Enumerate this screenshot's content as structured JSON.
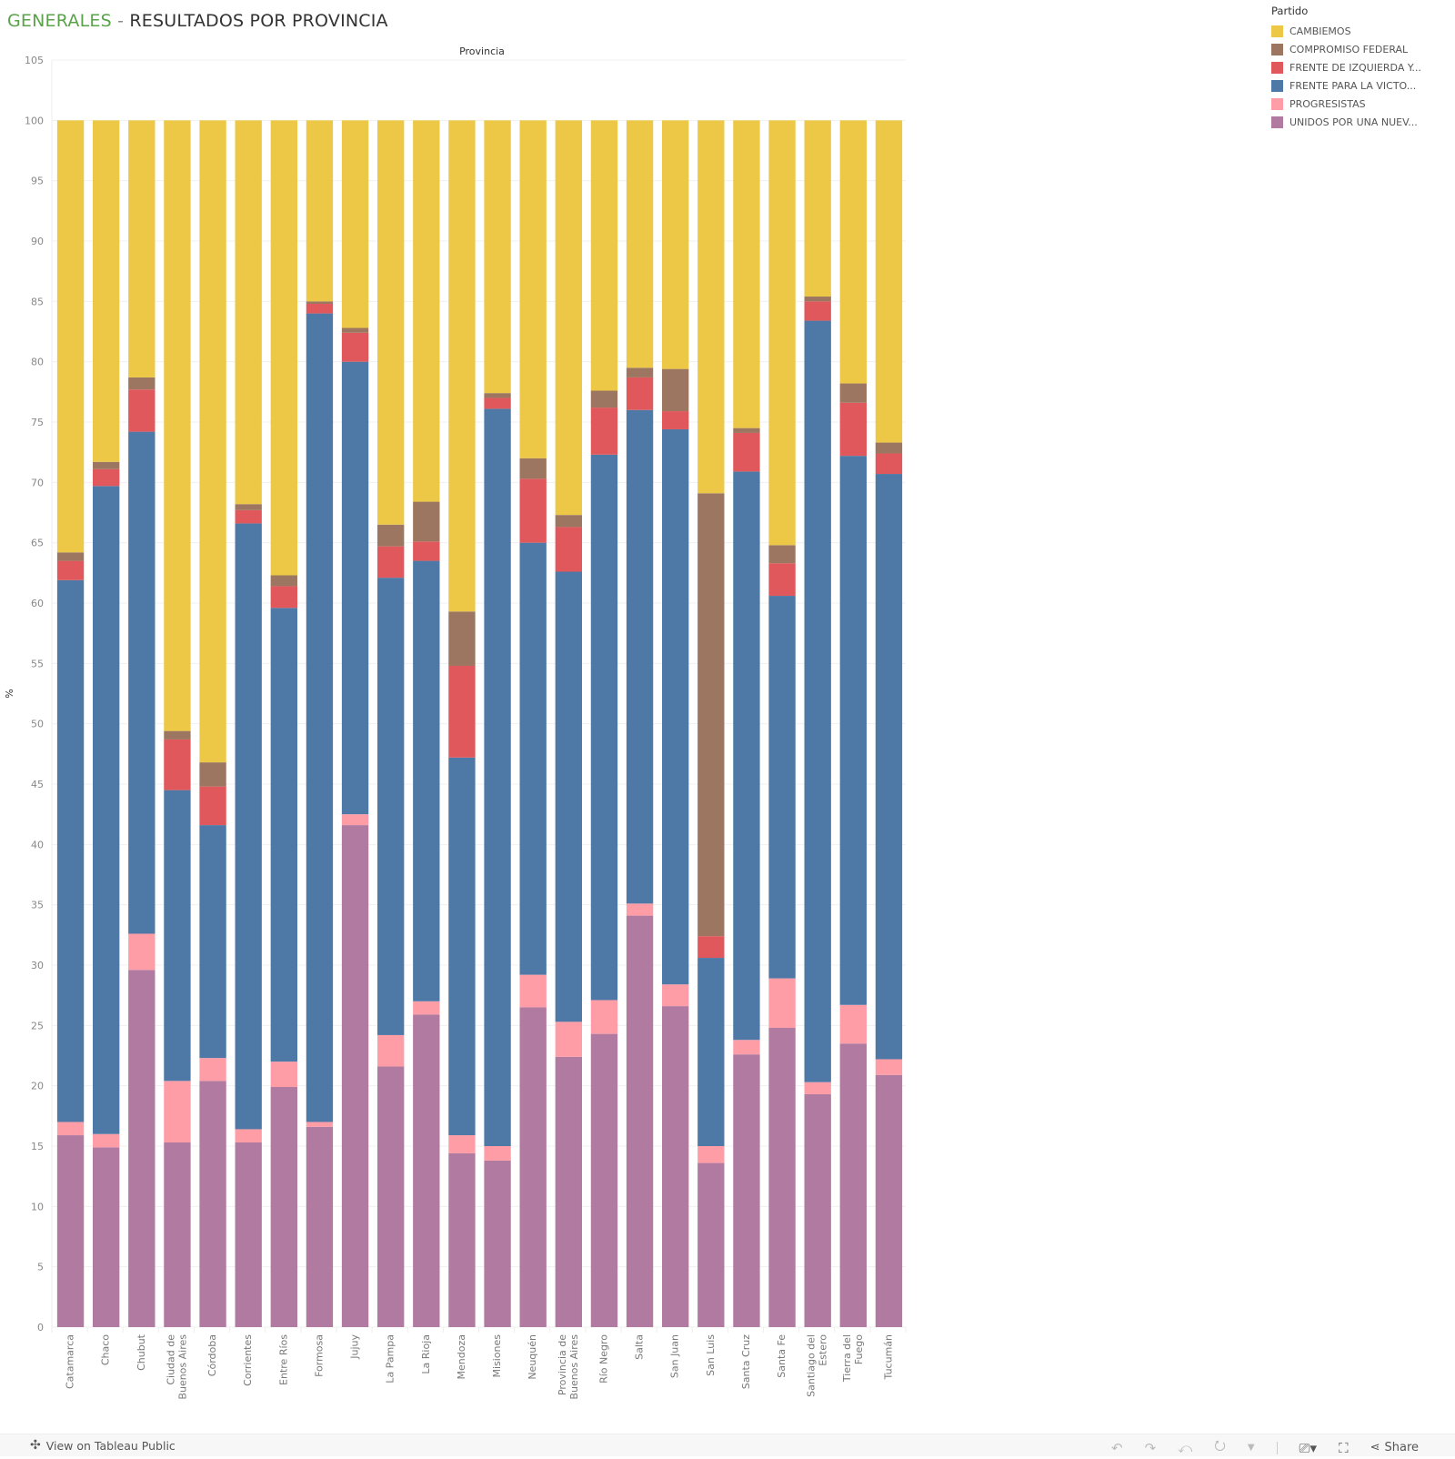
{
  "title": {
    "part1": "GENERALES",
    "sep": " - ",
    "part2": "RESULTADOS POR PROVINCIA"
  },
  "header_label": "Provincia",
  "legend": {
    "title": "Partido",
    "items": [
      {
        "label": "CAMBIEMOS",
        "color": "#ecc846"
      },
      {
        "label": "COMPROMISO FEDERAL",
        "color": "#9c7660"
      },
      {
        "label": "FRENTE DE IZQUIERDA Y...",
        "color": "#e0585b"
      },
      {
        "label": "FRENTE PARA LA VICTO...",
        "color": "#4e79a7"
      },
      {
        "label": "PROGRESISTAS",
        "color": "#ff9da7"
      },
      {
        "label": "UNIDOS POR UNA NUEV...",
        "color": "#b07aa1"
      }
    ]
  },
  "footer": {
    "view_label": "View on Tableau Public",
    "share_label": "Share"
  },
  "chart_data": {
    "type": "bar",
    "stacked": true,
    "title": "GENERALES - RESULTADOS POR PROVINCIA",
    "xlabel": "Provincia",
    "ylabel": "%",
    "ylim": [
      0,
      105
    ],
    "yticks": [
      0,
      5,
      10,
      15,
      20,
      25,
      30,
      35,
      40,
      45,
      50,
      55,
      60,
      65,
      70,
      75,
      80,
      85,
      90,
      95,
      100,
      105
    ],
    "grid": true,
    "legend_position": "top-right",
    "categories": [
      "Catamarca",
      "Chaco",
      "Chubut",
      "Ciudad de Buenos Aires",
      "Córdoba",
      "Corrientes",
      "Entre Ríos",
      "Formosa",
      "Jujuy",
      "La Pampa",
      "La Rioja",
      "Mendoza",
      "Misiones",
      "Neuquén",
      "Provincia de Buenos Aires",
      "Río Negro",
      "Salta",
      "San Juan",
      "San Luis",
      "Santa Cruz",
      "Santa Fe",
      "Santiago del Estero",
      "Tierra del Fuego",
      "Tucumán"
    ],
    "category_lines": [
      [
        "Catamarca"
      ],
      [
        "Chaco"
      ],
      [
        "Chubut"
      ],
      [
        "Ciudad de",
        "Buenos Aires"
      ],
      [
        "Córdoba"
      ],
      [
        "Corrientes"
      ],
      [
        "Entre Ríos"
      ],
      [
        "Formosa"
      ],
      [
        "Jujuy"
      ],
      [
        "La Pampa"
      ],
      [
        "La Rioja"
      ],
      [
        "Mendoza"
      ],
      [
        "Misiones"
      ],
      [
        "Neuquén"
      ],
      [
        "Provincia de",
        "Buenos Aires"
      ],
      [
        "Río Negro"
      ],
      [
        "Salta"
      ],
      [
        "San Juan"
      ],
      [
        "San Luis"
      ],
      [
        "Santa Cruz"
      ],
      [
        "Santa Fe"
      ],
      [
        "Santiago del",
        "Estero"
      ],
      [
        "Tierra del",
        "Fuego"
      ],
      [
        "Tucumán"
      ]
    ],
    "series": [
      {
        "name": "UNIDOS POR UNA NUEVA ALTERNATIVA",
        "color": "#b07aa1",
        "values": [
          15.9,
          14.9,
          29.6,
          15.3,
          20.4,
          15.3,
          19.9,
          16.6,
          41.6,
          21.6,
          25.9,
          14.4,
          13.8,
          26.5,
          22.4,
          24.3,
          34.1,
          26.6,
          13.6,
          22.6,
          24.8,
          19.3,
          23.5,
          20.9
        ]
      },
      {
        "name": "PROGRESISTAS",
        "color": "#ff9da7",
        "values": [
          1.1,
          1.1,
          3.0,
          5.1,
          1.9,
          1.1,
          2.1,
          0.4,
          0.9,
          2.6,
          1.1,
          1.5,
          1.2,
          2.7,
          2.9,
          2.8,
          1.0,
          1.8,
          1.4,
          1.2,
          4.1,
          1.0,
          3.2,
          1.3
        ]
      },
      {
        "name": "FRENTE PARA LA VICTORIA",
        "color": "#4e79a7",
        "values": [
          44.9,
          53.7,
          41.6,
          24.1,
          19.3,
          50.2,
          37.6,
          67.0,
          37.5,
          37.9,
          36.5,
          31.3,
          61.1,
          35.8,
          37.3,
          45.2,
          40.9,
          46.0,
          15.6,
          47.1,
          31.7,
          63.1,
          45.5,
          48.5
        ]
      },
      {
        "name": "FRENTE DE IZQUIERDA Y DE LOS TRABAJADORES",
        "color": "#e0585b",
        "values": [
          1.6,
          1.4,
          3.5,
          4.2,
          3.2,
          1.1,
          1.8,
          0.8,
          2.4,
          2.6,
          1.6,
          7.6,
          0.9,
          5.3,
          3.7,
          3.9,
          2.7,
          1.5,
          1.8,
          3.2,
          2.7,
          1.6,
          4.4,
          1.7
        ]
      },
      {
        "name": "COMPROMISO FEDERAL",
        "color": "#9c7660",
        "values": [
          0.7,
          0.6,
          1.0,
          0.7,
          2.0,
          0.5,
          0.9,
          0.2,
          0.4,
          1.8,
          3.3,
          4.5,
          0.4,
          1.7,
          1.0,
          1.4,
          0.8,
          3.5,
          36.7,
          0.4,
          1.5,
          0.4,
          1.6,
          0.9
        ]
      },
      {
        "name": "CAMBIEMOS",
        "color": "#ecc846",
        "values": [
          35.8,
          28.3,
          21.3,
          50.6,
          53.2,
          31.8,
          37.7,
          15.0,
          17.2,
          33.5,
          31.6,
          40.7,
          22.6,
          28.0,
          32.7,
          22.4,
          20.5,
          20.6,
          30.9,
          25.5,
          35.2,
          14.6,
          21.8,
          26.7
        ]
      }
    ]
  }
}
